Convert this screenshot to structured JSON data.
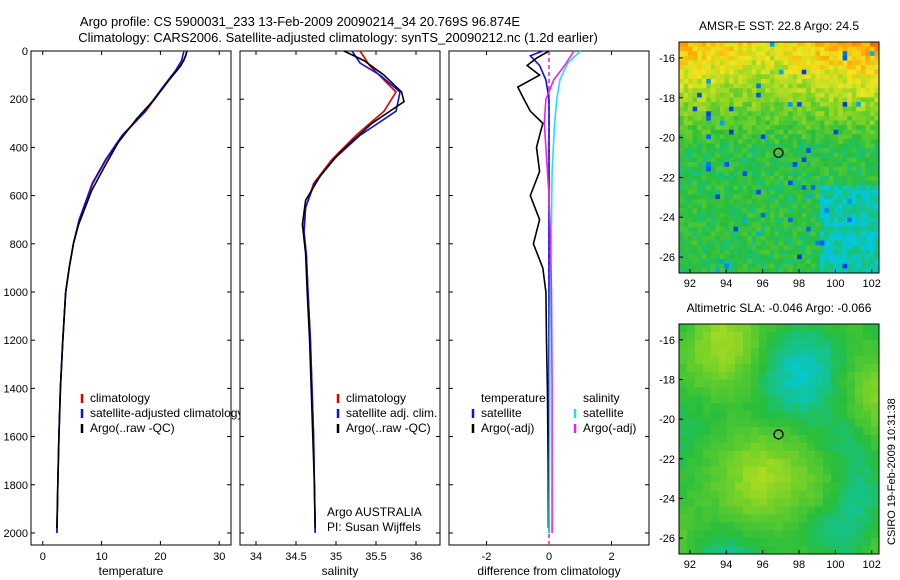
{
  "title_line1": "Argo profile: CS 5900031_233 13-Feb-2009 20090214_34 20.769S 96.874E",
  "title_line2": "Climatology: CARS2006. Satellite-adjusted climatology: synTS_20090212.nc (1.2d earlier)",
  "side_caption": "CSIRO 19-Feb-2009 10:31:38",
  "colors": {
    "climatology": "#e00000",
    "satellite": "#1010e0",
    "argo": "#000000",
    "sat_sal": "#20e0f0",
    "argo_sal": "#f020f0"
  },
  "chart_data": [
    {
      "type": "line",
      "xlabel": "temperature",
      "xlim": [
        -2,
        32
      ],
      "ylim": [
        2050,
        0
      ],
      "xticks": [
        0,
        10,
        20,
        30
      ],
      "yticks": [
        0,
        200,
        400,
        600,
        800,
        1000,
        1200,
        1400,
        1600,
        1800,
        2000
      ],
      "legend": [
        "climatology",
        "satellite-adjusted climatology",
        "Argo(..raw -QC)"
      ],
      "legend_position": "bottom-right",
      "series": [
        {
          "name": "climatology",
          "color_key": "climatology",
          "x": [
            24.5,
            24.0,
            22.8,
            20.5,
            17.5,
            13.6,
            10.8,
            8.5,
            6.2,
            5.2,
            4.5,
            3.9,
            3.4,
            3.0,
            2.75,
            2.55,
            2.4
          ],
          "y": [
            0,
            40,
            80,
            150,
            250,
            350,
            450,
            550,
            700,
            800,
            900,
            1000,
            1200,
            1400,
            1600,
            1800,
            2000
          ]
        },
        {
          "name": "satellite-adjusted climatology",
          "color_key": "satellite",
          "x": [
            24.0,
            23.6,
            22.6,
            20.4,
            17.4,
            13.5,
            10.7,
            8.4,
            6.2,
            5.2,
            4.5,
            3.9,
            3.4,
            3.0,
            2.75,
            2.55,
            2.4
          ],
          "y": [
            0,
            40,
            80,
            150,
            250,
            350,
            450,
            550,
            700,
            800,
            900,
            1000,
            1200,
            1400,
            1600,
            1800,
            2000
          ]
        },
        {
          "name": "Argo(..raw -QC)",
          "color_key": "argo",
          "x": [
            24.5,
            24.3,
            23.5,
            21.5,
            19.0,
            16.0,
            12.8,
            10.5,
            8.3,
            6.1,
            5.2,
            4.5,
            3.9,
            3.4,
            3.0,
            2.75,
            2.55,
            2.4
          ],
          "y": [
            0,
            20,
            60,
            120,
            200,
            280,
            380,
            480,
            580,
            720,
            800,
            900,
            1000,
            1200,
            1400,
            1600,
            1800,
            1980
          ]
        }
      ]
    },
    {
      "type": "line",
      "xlabel": "salinity",
      "xlim": [
        33.8,
        36.3
      ],
      "ylim": [
        2050,
        0
      ],
      "xticks": [
        34,
        34.5,
        35,
        35.5,
        36
      ],
      "legend": [
        "climatology",
        "satellite adj. clim.",
        "Argo(..raw -QC)"
      ],
      "legend_position": "bottom-right",
      "annotations": [
        "Argo AUSTRALIA",
        "PI: Susan Wijffels"
      ],
      "series": [
        {
          "name": "climatology",
          "color_key": "climatology",
          "x": [
            35.3,
            35.42,
            35.6,
            35.75,
            35.6,
            35.25,
            34.95,
            34.72,
            34.62,
            34.6,
            34.63,
            34.65,
            34.68,
            34.7,
            34.72,
            34.73,
            34.74
          ],
          "y": [
            0,
            60,
            120,
            170,
            250,
            350,
            450,
            550,
            650,
            750,
            850,
            1000,
            1200,
            1400,
            1600,
            1800,
            2000
          ]
        },
        {
          "name": "satellite adj. clim.",
          "color_key": "satellite",
          "x": [
            35.2,
            35.3,
            35.55,
            35.8,
            35.75,
            35.3,
            34.97,
            34.73,
            34.62,
            34.6,
            34.63,
            34.65,
            34.68,
            34.7,
            34.72,
            34.73,
            34.74
          ],
          "y": [
            0,
            50,
            100,
            170,
            250,
            350,
            450,
            550,
            650,
            750,
            850,
            1000,
            1200,
            1400,
            1600,
            1800,
            2000
          ]
        },
        {
          "name": "Argo(..raw -QC)",
          "color_key": "argo",
          "x": [
            35.1,
            35.35,
            35.6,
            35.82,
            35.85,
            35.45,
            35.05,
            34.8,
            34.62,
            34.58,
            34.62,
            34.64,
            34.67,
            34.69,
            34.71,
            34.73,
            34.74
          ],
          "y": [
            0,
            40,
            100,
            170,
            210,
            300,
            420,
            520,
            620,
            720,
            840,
            1000,
            1200,
            1400,
            1600,
            1800,
            1980
          ]
        }
      ]
    },
    {
      "type": "line",
      "xlabel": "difference from climatology",
      "xlim": [
        -3.2,
        3.2
      ],
      "ylim": [
        2050,
        0
      ],
      "xticks": [
        -2,
        0,
        2
      ],
      "legend": [
        "temperature",
        "satellite",
        "Argo(-adj)",
        "salinity",
        "satellite",
        "Argo(-adj)"
      ],
      "legend_position": "bottom",
      "series": [
        {
          "name": "satellite",
          "color_key": "satellite",
          "x": [
            -0.2,
            -0.6,
            -0.3,
            -0.1,
            0.0,
            0.0,
            0.0,
            0.0,
            0.0,
            0.0,
            0.0
          ],
          "y": [
            0,
            20,
            60,
            120,
            200,
            400,
            600,
            800,
            1200,
            1600,
            2000
          ]
        },
        {
          "name": "Argo(-adj)",
          "color_key": "argo",
          "x": [
            0.0,
            -0.4,
            -0.7,
            -0.3,
            -1.0,
            -0.8,
            -0.6,
            -0.2,
            -0.4,
            -0.3,
            -0.6,
            -0.3,
            -0.5,
            -0.2,
            -0.1,
            -0.08,
            -0.05,
            -0.03,
            -0.02
          ],
          "y": [
            0,
            30,
            60,
            100,
            150,
            200,
            250,
            300,
            400,
            500,
            600,
            700,
            800,
            900,
            1000,
            1200,
            1400,
            1700,
            1980
          ]
        },
        {
          "name": "satellite",
          "color_key": "sat_sal",
          "x": [
            1.0,
            0.6,
            0.35,
            0.25,
            0.18,
            0.1,
            0.08,
            0.05,
            0.03,
            0.02,
            0.0
          ],
          "y": [
            0,
            50,
            120,
            200,
            300,
            500,
            700,
            900,
            1200,
            1600,
            2000
          ]
        },
        {
          "name": "Argo(-adj)",
          "color_key": "argo_sal",
          "x": [
            0.8,
            0.5,
            0.15,
            -0.1,
            -0.15,
            -0.1,
            0.0,
            0.05,
            0.08,
            0.1,
            0.1,
            0.1
          ],
          "y": [
            0,
            60,
            120,
            200,
            300,
            400,
            600,
            800,
            1000,
            1400,
            1800,
            2000
          ]
        }
      ]
    },
    {
      "type": "heatmap",
      "title": "AMSR-E SST: 22.8 Argo: 24.5",
      "xlim": [
        91.4,
        102.4
      ],
      "ylim": [
        -26.8,
        -15.2
      ],
      "xticks": [
        92,
        94,
        96,
        98,
        100,
        102
      ],
      "yticks": [
        -16,
        -18,
        -20,
        -22,
        -24,
        -26
      ],
      "marker": {
        "x": 96.874,
        "y": -20.769
      }
    },
    {
      "type": "heatmap",
      "title": "Altimetric SLA: -0.046 Argo: -0.066",
      "xlim": [
        91.4,
        102.4
      ],
      "ylim": [
        -26.8,
        -15.2
      ],
      "xticks": [
        92,
        94,
        96,
        98,
        100,
        102
      ],
      "yticks": [
        -16,
        -18,
        -20,
        -22,
        -24,
        -26
      ],
      "marker": {
        "x": 96.874,
        "y": -20.769
      }
    }
  ]
}
